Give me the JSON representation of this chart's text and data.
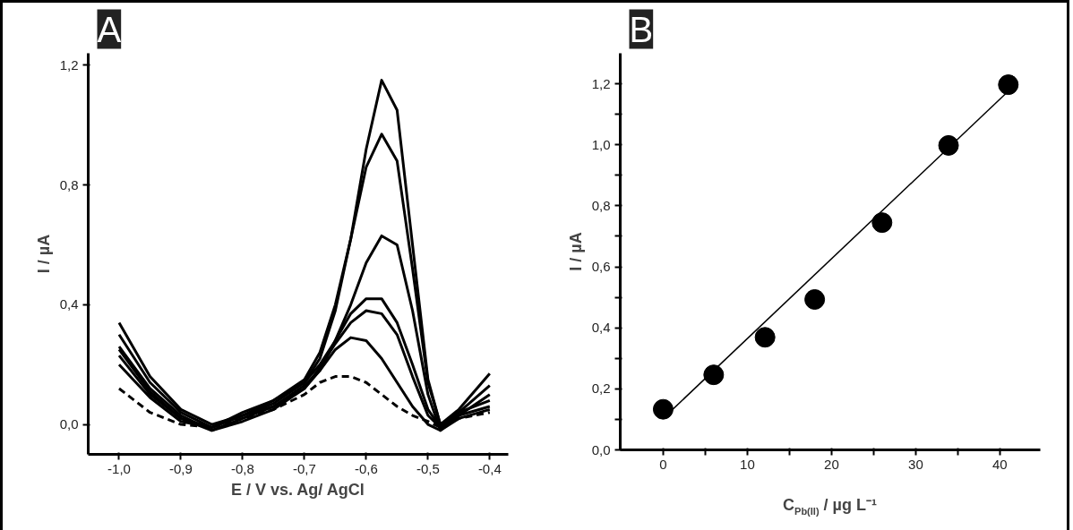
{
  "chart_data": [
    {
      "type": "line",
      "title": "A",
      "xlabel": "E / V vs. Ag/ AgCl",
      "ylabel": "I / µA",
      "x": [
        -1.0,
        -0.95,
        -0.9,
        -0.85,
        -0.8,
        -0.75,
        -0.7,
        -0.675,
        -0.65,
        -0.625,
        -0.6,
        -0.575,
        -0.55,
        -0.525,
        -0.5,
        -0.48,
        -0.45,
        -0.4
      ],
      "series": [
        {
          "color": "#000000",
          "values": [
            0.34,
            0.16,
            0.05,
            0.0,
            0.03,
            0.07,
            0.14,
            0.22,
            0.38,
            0.62,
            0.92,
            1.15,
            1.05,
            0.6,
            0.15,
            0.0,
            0.05,
            0.17
          ]
        },
        {
          "color": "#000000",
          "values": [
            0.3,
            0.14,
            0.04,
            -0.01,
            0.03,
            0.08,
            0.15,
            0.24,
            0.4,
            0.62,
            0.86,
            0.97,
            0.88,
            0.52,
            0.14,
            0.0,
            0.04,
            0.13
          ]
        },
        {
          "color": "#000000",
          "values": [
            0.26,
            0.12,
            0.03,
            -0.02,
            0.02,
            0.06,
            0.12,
            0.18,
            0.28,
            0.4,
            0.54,
            0.63,
            0.6,
            0.38,
            0.1,
            -0.02,
            0.03,
            0.1
          ]
        },
        {
          "color": "#000000",
          "values": [
            0.25,
            0.11,
            0.02,
            -0.01,
            0.04,
            0.08,
            0.14,
            0.2,
            0.28,
            0.37,
            0.42,
            0.42,
            0.34,
            0.2,
            0.05,
            -0.01,
            0.04,
            0.08
          ]
        },
        {
          "color": "#000000",
          "values": [
            0.23,
            0.1,
            0.02,
            -0.02,
            0.01,
            0.05,
            0.12,
            0.19,
            0.27,
            0.34,
            0.38,
            0.37,
            0.3,
            0.16,
            0.03,
            -0.01,
            0.03,
            0.06
          ]
        },
        {
          "color": "#000000",
          "values": [
            0.2,
            0.09,
            0.01,
            -0.01,
            0.03,
            0.06,
            0.13,
            0.18,
            0.25,
            0.29,
            0.28,
            0.22,
            0.14,
            0.06,
            0.0,
            -0.02,
            0.02,
            0.05
          ]
        },
        {
          "color": "#000000",
          "line_style": "dashed",
          "values": [
            0.12,
            0.04,
            0.0,
            -0.01,
            0.02,
            0.05,
            0.1,
            0.14,
            0.16,
            0.16,
            0.14,
            0.1,
            0.06,
            0.03,
            0.01,
            -0.01,
            0.02,
            0.04
          ]
        }
      ],
      "xlim": [
        -1.05,
        -0.37
      ],
      "ylim": [
        -0.1,
        1.24
      ],
      "xticks": [
        {
          "value": -1.0,
          "label": "-1,0"
        },
        {
          "value": -0.9,
          "label": "-0,9"
        },
        {
          "value": -0.8,
          "label": "-0,8"
        },
        {
          "value": -0.7,
          "label": "-0,7"
        },
        {
          "value": -0.6,
          "label": "-0,6"
        },
        {
          "value": -0.5,
          "label": "-0,5"
        },
        {
          "value": -0.4,
          "label": "-0,4"
        }
      ],
      "yticks": [
        {
          "value": 0.0,
          "label": "0,0"
        },
        {
          "value": 0.4,
          "label": "0,4"
        },
        {
          "value": 0.8,
          "label": "0,8"
        },
        {
          "value": 1.2,
          "label": "1,2"
        }
      ],
      "grid": false,
      "marker": "none",
      "line_style": "solid"
    },
    {
      "type": "scatter",
      "title": "B",
      "xlabel": "C$_{Pb(II)}$ / µg L⁻¹",
      "ylabel": "I / µA",
      "series": [
        {
          "color": "#000000",
          "x": [
            0,
            6.0,
            12.1,
            18.0,
            26.0,
            33.9,
            41.0
          ],
          "values": [
            0.133,
            0.246,
            0.369,
            0.493,
            0.745,
            0.998,
            1.197
          ]
        },
        {
          "type": "line",
          "color": "#000000",
          "marker": "none",
          "x": [
            0.64,
            40.7
          ],
          "values": [
            0.12,
            1.168
          ]
        }
      ],
      "xlim": [
        -5.1,
        44.8
      ],
      "ylim": [
        0,
        1.3
      ],
      "xticks": [
        0,
        {
          "value": 5,
          "label": null
        },
        10,
        {
          "value": 15,
          "label": null
        },
        20,
        {
          "value": 25,
          "label": null
        },
        30,
        {
          "value": 35,
          "label": null
        },
        40
      ],
      "yticks": [
        {
          "value": 0.0,
          "label": "0,0"
        },
        {
          "value": 0.1,
          "label": null
        },
        {
          "value": 0.2,
          "label": "0,2"
        },
        {
          "value": 0.3,
          "label": null
        },
        {
          "value": 0.4,
          "label": "0,4"
        },
        {
          "value": 0.5,
          "label": null
        },
        {
          "value": 0.6,
          "label": "0,6"
        },
        {
          "value": 0.7,
          "label": null
        },
        {
          "value": 0.8,
          "label": "0,8"
        },
        {
          "value": 0.9,
          "label": null
        },
        {
          "value": 1.0,
          "label": "1,0"
        },
        {
          "value": 1.1,
          "label": null
        },
        {
          "value": 1.2,
          "label": "1,2"
        }
      ],
      "grid": false,
      "marker": "circle",
      "line_style": "solid"
    }
  ]
}
